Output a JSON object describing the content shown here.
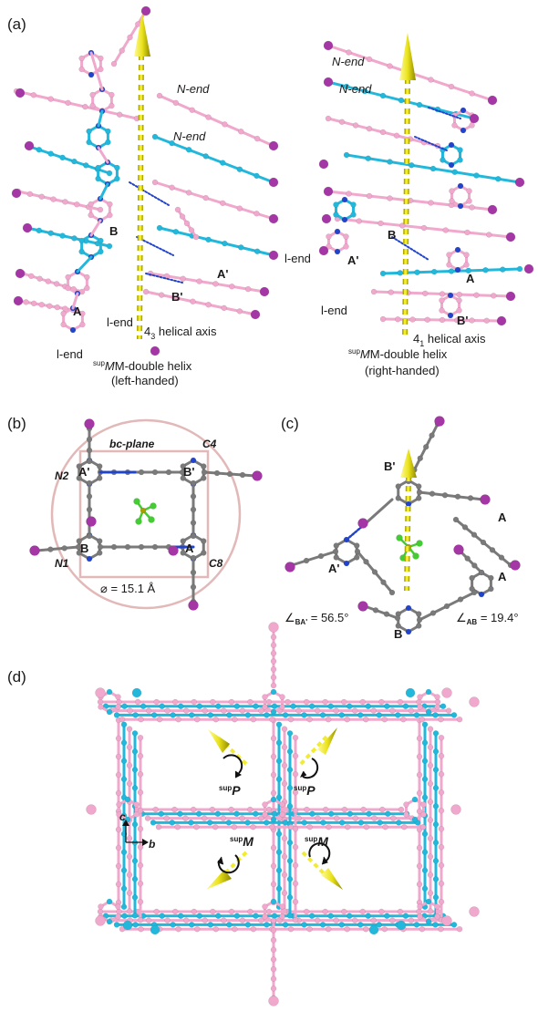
{
  "panels": {
    "a": {
      "label": "(a)",
      "left": {
        "n_end_1": "N-end",
        "n_end_2": "N-end",
        "ring_a": "A",
        "ring_b": "B",
        "ring_a_prime": "A'",
        "ring_b_prime": "B'",
        "l_end_1": "l-end",
        "l_end_2": "l-end",
        "axis_sub": "3",
        "axis_prefix": "4",
        "axis_text": " helical axis",
        "helix_sup": "sup",
        "helix_name": "M-double helix",
        "handedness": "(left-handed)"
      },
      "right": {
        "n_end_1": "N-end",
        "n_end_2": "N-end",
        "ring_a": "A",
        "ring_b": "B",
        "ring_a_prime": "A'",
        "ring_b_prime": "B'",
        "l_end_1": "l-end",
        "l_end_2": "l-end",
        "axis_sub": "1",
        "axis_prefix": "4",
        "axis_text": " helical axis",
        "helix_sup": "sup",
        "helix_name": "M-double helix",
        "handedness": "(right-handed)"
      }
    },
    "b": {
      "label": "(b)",
      "plane": "bc-plane",
      "n2": "N2",
      "c4": "C4",
      "n1": "N1",
      "c8": "C8",
      "ring_a": "A",
      "ring_b": "B",
      "ring_a_prime": "A'",
      "ring_b_prime": "B'",
      "diameter": "⌀ = 15.1 Å"
    },
    "c": {
      "label": "(c)",
      "ring_a1": "A",
      "ring_a2": "A",
      "ring_b": "B",
      "ring_a_prime": "A'",
      "ring_b_prime": "B'",
      "angle_ba_sub": "BA'",
      "angle_ba_val": " = 56.5°",
      "angle_ab_sub": "AB",
      "angle_ab_val": " = 19.4°"
    },
    "d": {
      "label": "(d)",
      "sup": "sup",
      "p1": "P",
      "p2": "P",
      "m1": "M",
      "m2": "M",
      "axis_c": "c",
      "axis_b": "b"
    }
  },
  "colors": {
    "pink": "#f0a8cc",
    "pink_dark": "#d88ab4",
    "cyan": "#22b8dc",
    "cyan_dark": "#1590b4",
    "purple": "#a536a5",
    "blue_n": "#2244cc",
    "yellow": "#e6e000",
    "yellow_dark": "#a8a000",
    "grey": "#7a7a7a",
    "green": "#44cc33",
    "circle": "#e2b8b8"
  }
}
